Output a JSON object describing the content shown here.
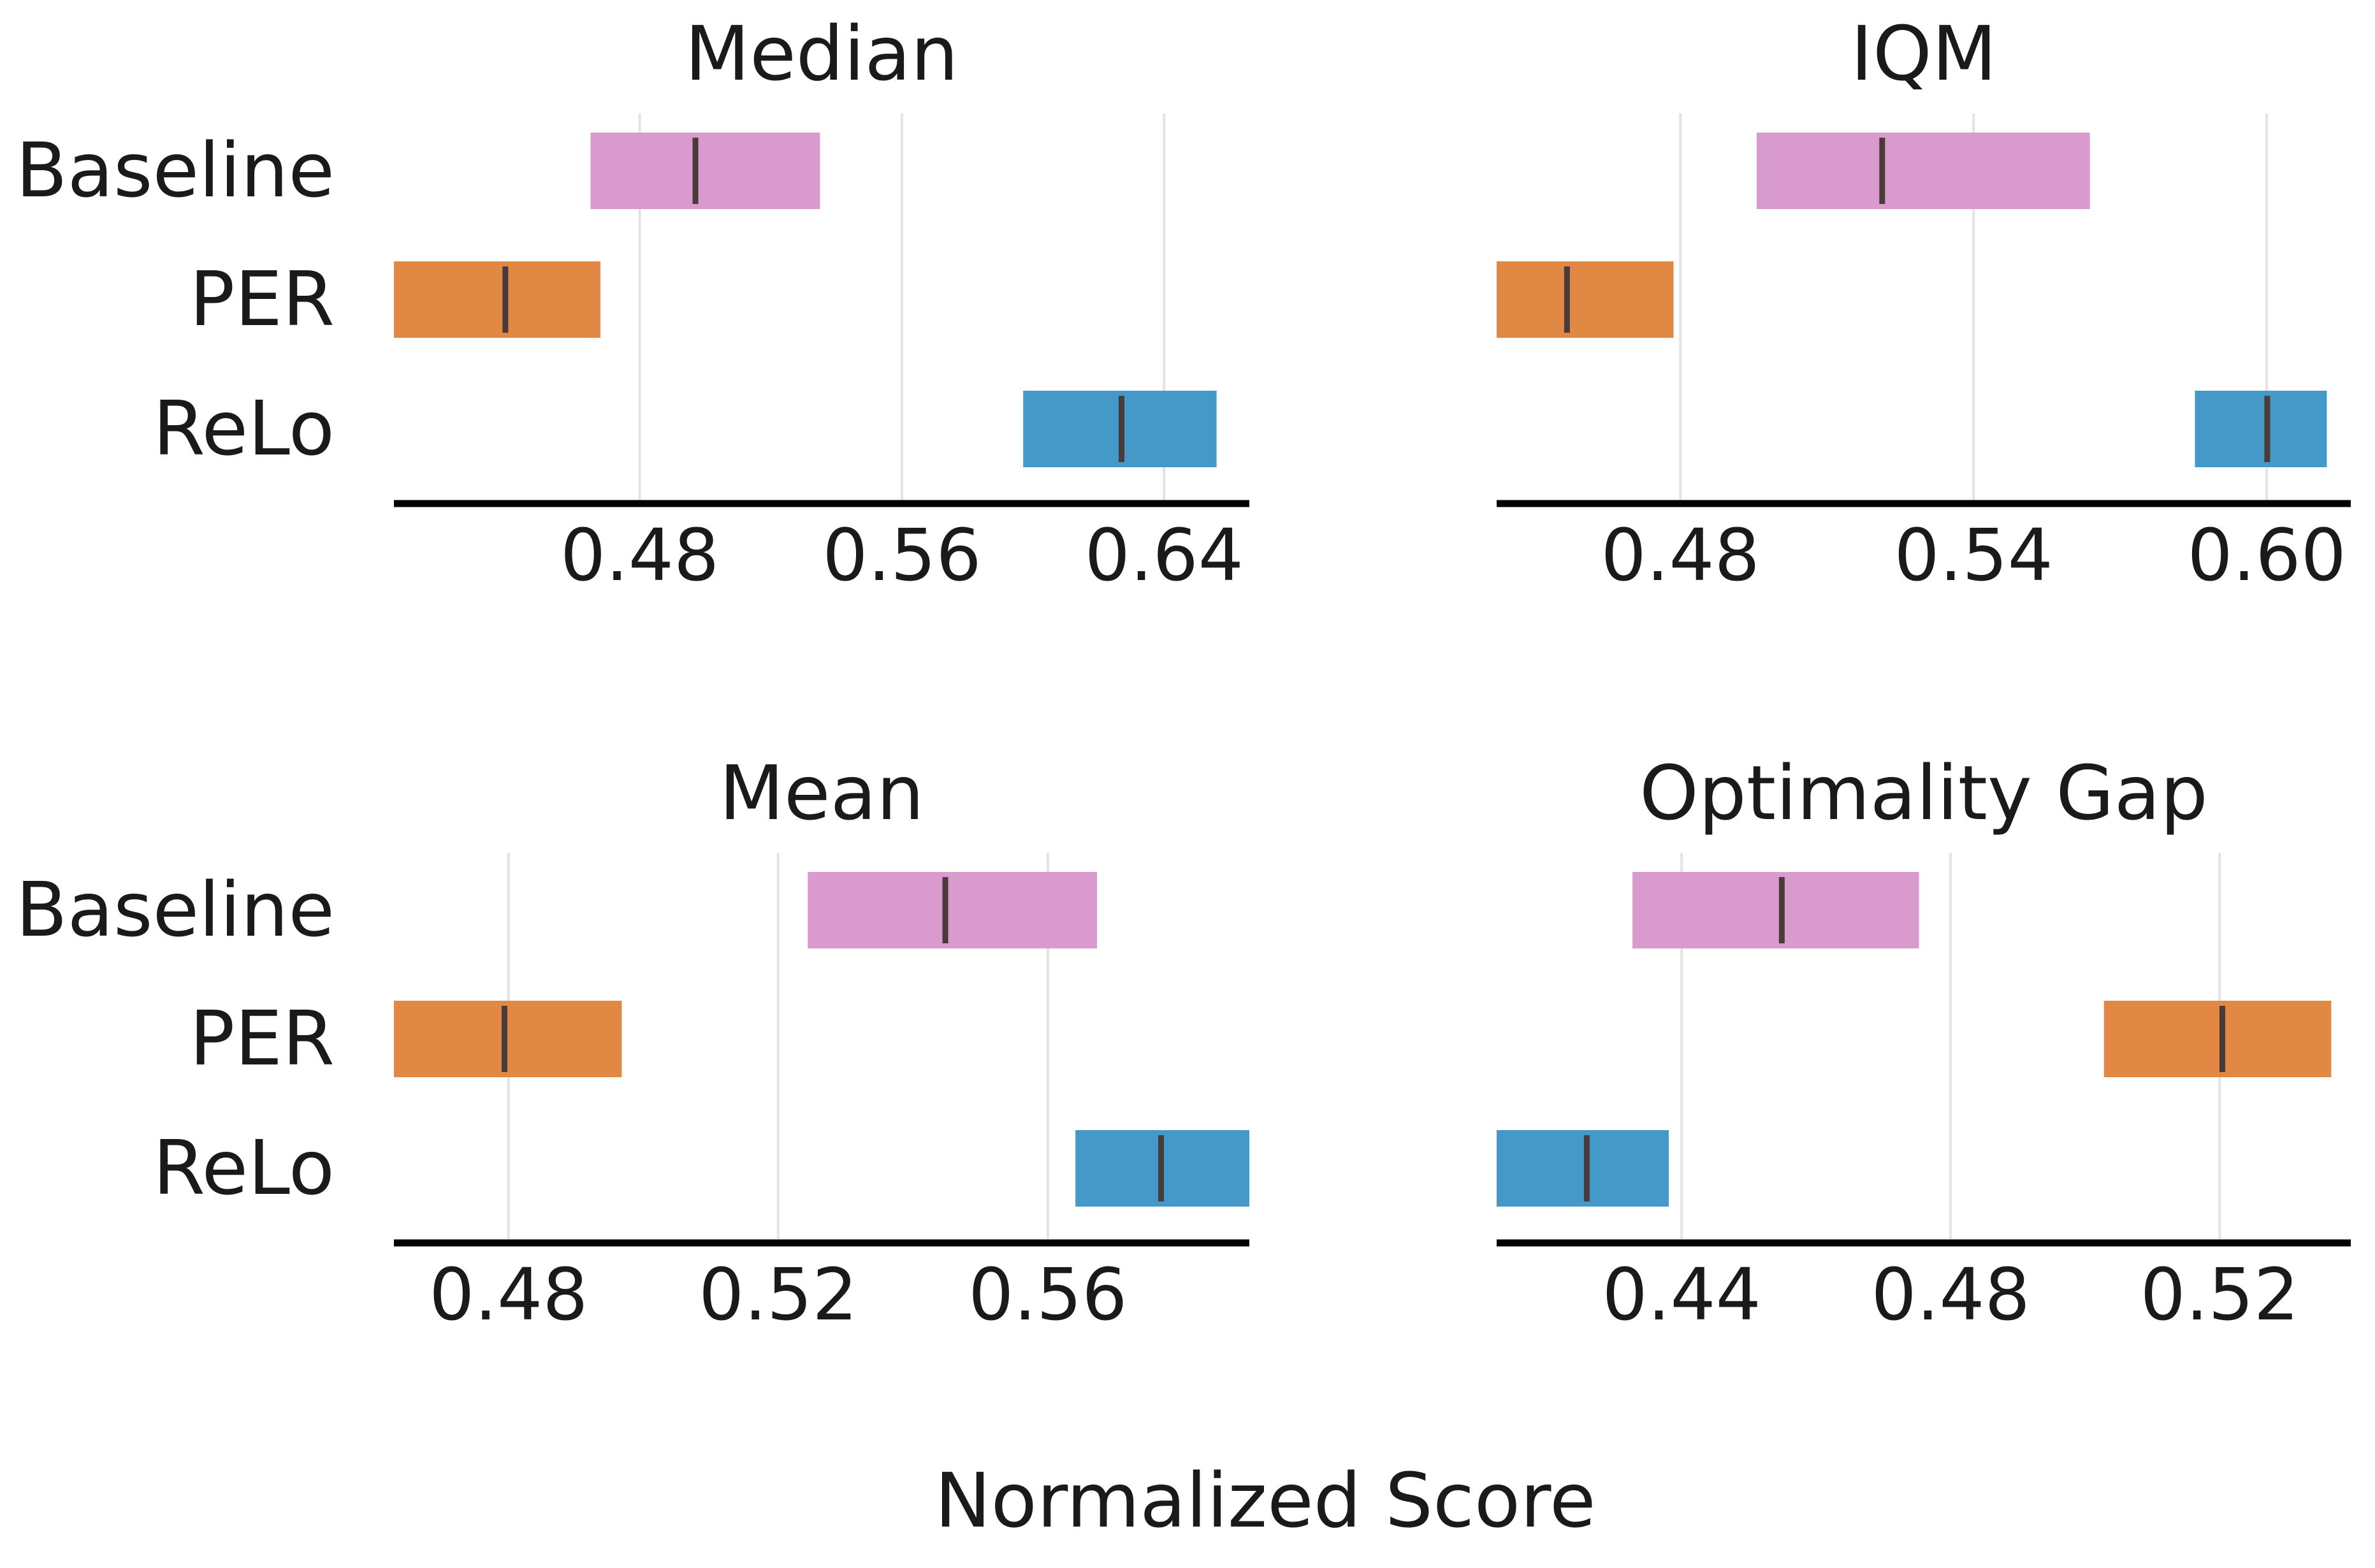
{
  "figure": {
    "xlabel": "Normalized Score"
  },
  "colors": {
    "Baseline": "#d99bcd",
    "PER": "#e08844",
    "ReLo": "#4499c8",
    "point_marker": "#4a3a3a",
    "grid": "#e3e3e3",
    "axis": "#000000"
  },
  "chart_data": [
    {
      "type": "interval",
      "title": "Median",
      "categories": [
        "Baseline",
        "PER",
        "ReLo"
      ],
      "intervals": [
        {
          "name": "Baseline",
          "low": 0.465,
          "point": 0.497,
          "high": 0.535
        },
        {
          "name": "PER",
          "low": 0.405,
          "point": 0.439,
          "high": 0.468
        },
        {
          "name": "ReLo",
          "low": 0.597,
          "point": 0.627,
          "high": 0.656
        }
      ],
      "xticks": [
        0.48,
        0.56,
        0.64
      ],
      "xtick_labels": [
        "0.48",
        "0.56",
        "0.64"
      ],
      "xlim": [
        0.405,
        0.666
      ],
      "grid": true
    },
    {
      "type": "interval",
      "title": "IQM",
      "categories": [
        "Baseline",
        "PER",
        "ReLo"
      ],
      "intervals": [
        {
          "name": "Baseline",
          "low": 0.4956,
          "point": 0.5213,
          "high": 0.5638
        },
        {
          "name": "PER",
          "low": 0.4424,
          "point": 0.4568,
          "high": 0.4786
        },
        {
          "name": "ReLo",
          "low": 0.5853,
          "point": 0.6001,
          "high": 0.6123
        }
      ],
      "xticks": [
        0.48,
        0.54,
        0.6
      ],
      "xtick_labels": [
        "0.48",
        "0.54",
        "0.60"
      ],
      "xlim": [
        0.4424,
        0.6172
      ],
      "grid": true
    },
    {
      "type": "interval",
      "title": "Mean",
      "categories": [
        "Baseline",
        "PER",
        "ReLo"
      ],
      "intervals": [
        {
          "name": "Baseline",
          "low": 0.5244,
          "point": 0.5448,
          "high": 0.5673
        },
        {
          "name": "PER",
          "low": 0.463,
          "point": 0.4794,
          "high": 0.4968
        },
        {
          "name": "ReLo",
          "low": 0.5641,
          "point": 0.5768,
          "high": 0.5899
        }
      ],
      "xticks": [
        0.48,
        0.52,
        0.56
      ],
      "xtick_labels": [
        "0.48",
        "0.52",
        "0.56"
      ],
      "xlim": [
        0.463,
        0.5899
      ],
      "grid": true
    },
    {
      "type": "interval",
      "title": "Optimality Gap",
      "categories": [
        "Baseline",
        "PER",
        "ReLo"
      ],
      "intervals": [
        {
          "name": "Baseline",
          "low": 0.4327,
          "point": 0.4549,
          "high": 0.4753
        },
        {
          "name": "PER",
          "low": 0.5028,
          "point": 0.5204,
          "high": 0.5366
        },
        {
          "name": "ReLo",
          "low": 0.4125,
          "point": 0.4259,
          "high": 0.4381
        }
      ],
      "xticks": [
        0.44,
        0.48,
        0.52
      ],
      "xtick_labels": [
        "0.44",
        "0.48",
        "0.52"
      ],
      "xlim": [
        0.4125,
        0.5395
      ],
      "grid": true
    }
  ]
}
